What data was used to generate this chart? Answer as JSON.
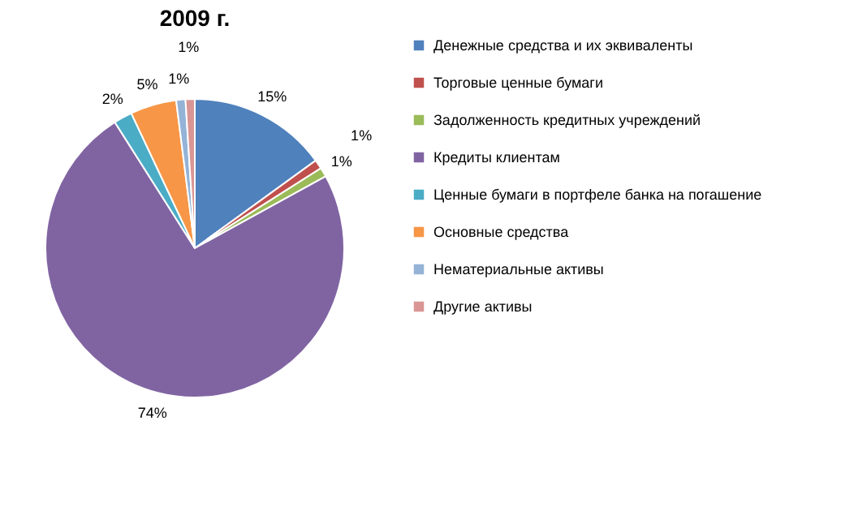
{
  "chart_data": {
    "type": "pie",
    "title": "2009 г.",
    "categories": [
      "Денежные средства и их эквиваленты",
      "Торговые ценные бумаги",
      "Задолженность кредитных учреждений",
      "Кредиты клиентам",
      "Ценные бумаги в портфеле банка на погашение",
      "Основные средства",
      "Нематериальные активы",
      "Другие активы"
    ],
    "values": [
      15,
      1,
      1,
      74,
      2,
      5,
      1,
      1
    ],
    "value_labels": [
      "15%",
      "1%",
      "1%",
      "74%",
      "2%",
      "5%",
      "1%",
      "1%"
    ],
    "colors": [
      "#4f81bd",
      "#c0504d",
      "#9bbb59",
      "#8064a2",
      "#4bacc6",
      "#f79646",
      "#95b3d7",
      "#d99694"
    ],
    "legend": "right"
  }
}
